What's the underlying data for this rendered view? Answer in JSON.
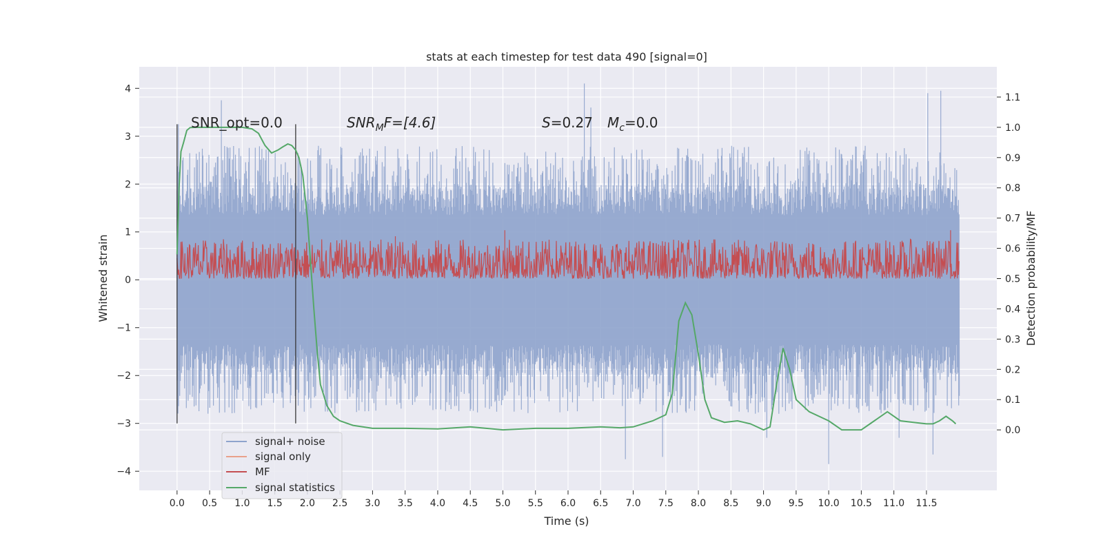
{
  "chart_data": {
    "type": "line",
    "title": "stats at each timestep for test data 490 [signal=0]",
    "xlabel": "Time (s)",
    "ylabel": "Whitened strain",
    "y2label": "Detection probability/MF",
    "xlim": [
      -0.58,
      12.58
    ],
    "ylim": [
      -4.4,
      4.45
    ],
    "y2lim": [
      -0.2,
      1.2
    ],
    "xticks": [
      "0.0",
      "0.5",
      "1.0",
      "1.5",
      "2.0",
      "2.5",
      "3.0",
      "3.5",
      "4.0",
      "4.5",
      "5.0",
      "5.5",
      "6.0",
      "6.5",
      "7.0",
      "7.5",
      "8.0",
      "8.5",
      "9.0",
      "9.5",
      "10.0",
      "10.5",
      "11.0",
      "11.5"
    ],
    "yticks": [
      "4",
      "3",
      "2",
      "1",
      "0",
      "−1",
      "−2",
      "−3",
      "−4"
    ],
    "y2ticks": [
      "1.1",
      "1.0",
      "0.9",
      "0.8",
      "0.7",
      "0.6",
      "0.5",
      "0.4",
      "0.3",
      "0.2",
      "0.1",
      "0.0"
    ],
    "grid": true,
    "legend_position": "lower-left",
    "legend": [
      {
        "label": "signal+ noise",
        "color": "#8ea3cc"
      },
      {
        "label": "signal only",
        "color": "#e9a08a"
      },
      {
        "label": "MF",
        "color": "#c44e52"
      },
      {
        "label": "signal statistics",
        "color": "#55a868"
      }
    ],
    "annotations": {
      "snr_opt": "SNR_opt=0.0",
      "snr_mf_sym": "SNR",
      "snr_mf_sub": "M",
      "snr_mf_rest": "F=[4.6]",
      "s_sym": "S",
      "s_rest": "=0.27",
      "mc_sym": "M",
      "mc_sub": "c",
      "mc_rest": "=0.0"
    },
    "vertical_lines_x": [
      0.0,
      1.82
    ],
    "series": [
      {
        "name": "signal+ noise",
        "color": "#8ea3cc",
        "x_range": [
          0.0,
          12.0
        ],
        "envelope_band": [
          -1.35,
          1.35
        ],
        "typical_peak_range": [
          2.0,
          2.8
        ],
        "notable_spikes": [
          [
            0.02,
            3.25
          ],
          [
            0.68,
            3.75
          ],
          [
            6.25,
            4.1
          ],
          [
            6.35,
            3.6
          ],
          [
            7.45,
            -3.7
          ],
          [
            6.88,
            -3.75
          ],
          [
            10.0,
            -3.85
          ],
          [
            11.52,
            3.9
          ],
          [
            11.72,
            3.95
          ],
          [
            11.08,
            -3.3
          ],
          [
            11.6,
            -3.65
          ],
          [
            9.05,
            -3.3
          ]
        ]
      },
      {
        "name": "MF",
        "color": "#c44e52",
        "x_range": [
          0.0,
          12.0
        ],
        "y_range_detection_axis": [
          0.5,
          0.63
        ],
        "notable_peaks_detection_axis": [
          [
            5.03,
            0.66
          ],
          [
            11.87,
            0.66
          ],
          [
            3.35,
            0.64
          ]
        ]
      },
      {
        "name": "signal statistics",
        "color": "#55a868",
        "x": [
          0.0,
          0.03,
          0.06,
          0.1,
          0.15,
          0.2,
          0.3,
          0.5,
          0.8,
          1.0,
          1.15,
          1.25,
          1.35,
          1.45,
          1.55,
          1.62,
          1.7,
          1.76,
          1.82,
          1.87,
          1.93,
          2.0,
          2.05,
          2.1,
          2.15,
          2.2,
          2.3,
          2.4,
          2.5,
          2.7,
          3.0,
          3.5,
          4.0,
          4.5,
          5.0,
          5.5,
          6.0,
          6.5,
          6.8,
          7.0,
          7.3,
          7.5,
          7.6,
          7.7,
          7.8,
          7.9,
          8.0,
          8.1,
          8.2,
          8.4,
          8.6,
          8.8,
          9.0,
          9.1,
          9.2,
          9.3,
          9.4,
          9.5,
          9.7,
          10.0,
          10.2,
          10.5,
          10.7,
          10.9,
          11.1,
          11.3,
          11.5,
          11.6,
          11.7,
          11.8,
          11.9,
          11.95
        ],
        "y": [
          0.58,
          0.8,
          0.92,
          0.95,
          0.99,
          0.999,
          1.0,
          1.0,
          1.0,
          1.0,
          0.995,
          0.98,
          0.94,
          0.915,
          0.925,
          0.935,
          0.945,
          0.94,
          0.925,
          0.9,
          0.84,
          0.7,
          0.55,
          0.4,
          0.26,
          0.15,
          0.08,
          0.045,
          0.03,
          0.015,
          0.005,
          0.005,
          0.003,
          0.01,
          0.0,
          0.005,
          0.005,
          0.01,
          0.007,
          0.01,
          0.03,
          0.05,
          0.12,
          0.36,
          0.42,
          0.38,
          0.25,
          0.1,
          0.04,
          0.025,
          0.03,
          0.02,
          0.0,
          0.01,
          0.15,
          0.27,
          0.2,
          0.1,
          0.06,
          0.03,
          0.0,
          0.0,
          0.03,
          0.06,
          0.03,
          0.025,
          0.02,
          0.02,
          0.03,
          0.045,
          0.03,
          0.02
        ]
      }
    ]
  }
}
